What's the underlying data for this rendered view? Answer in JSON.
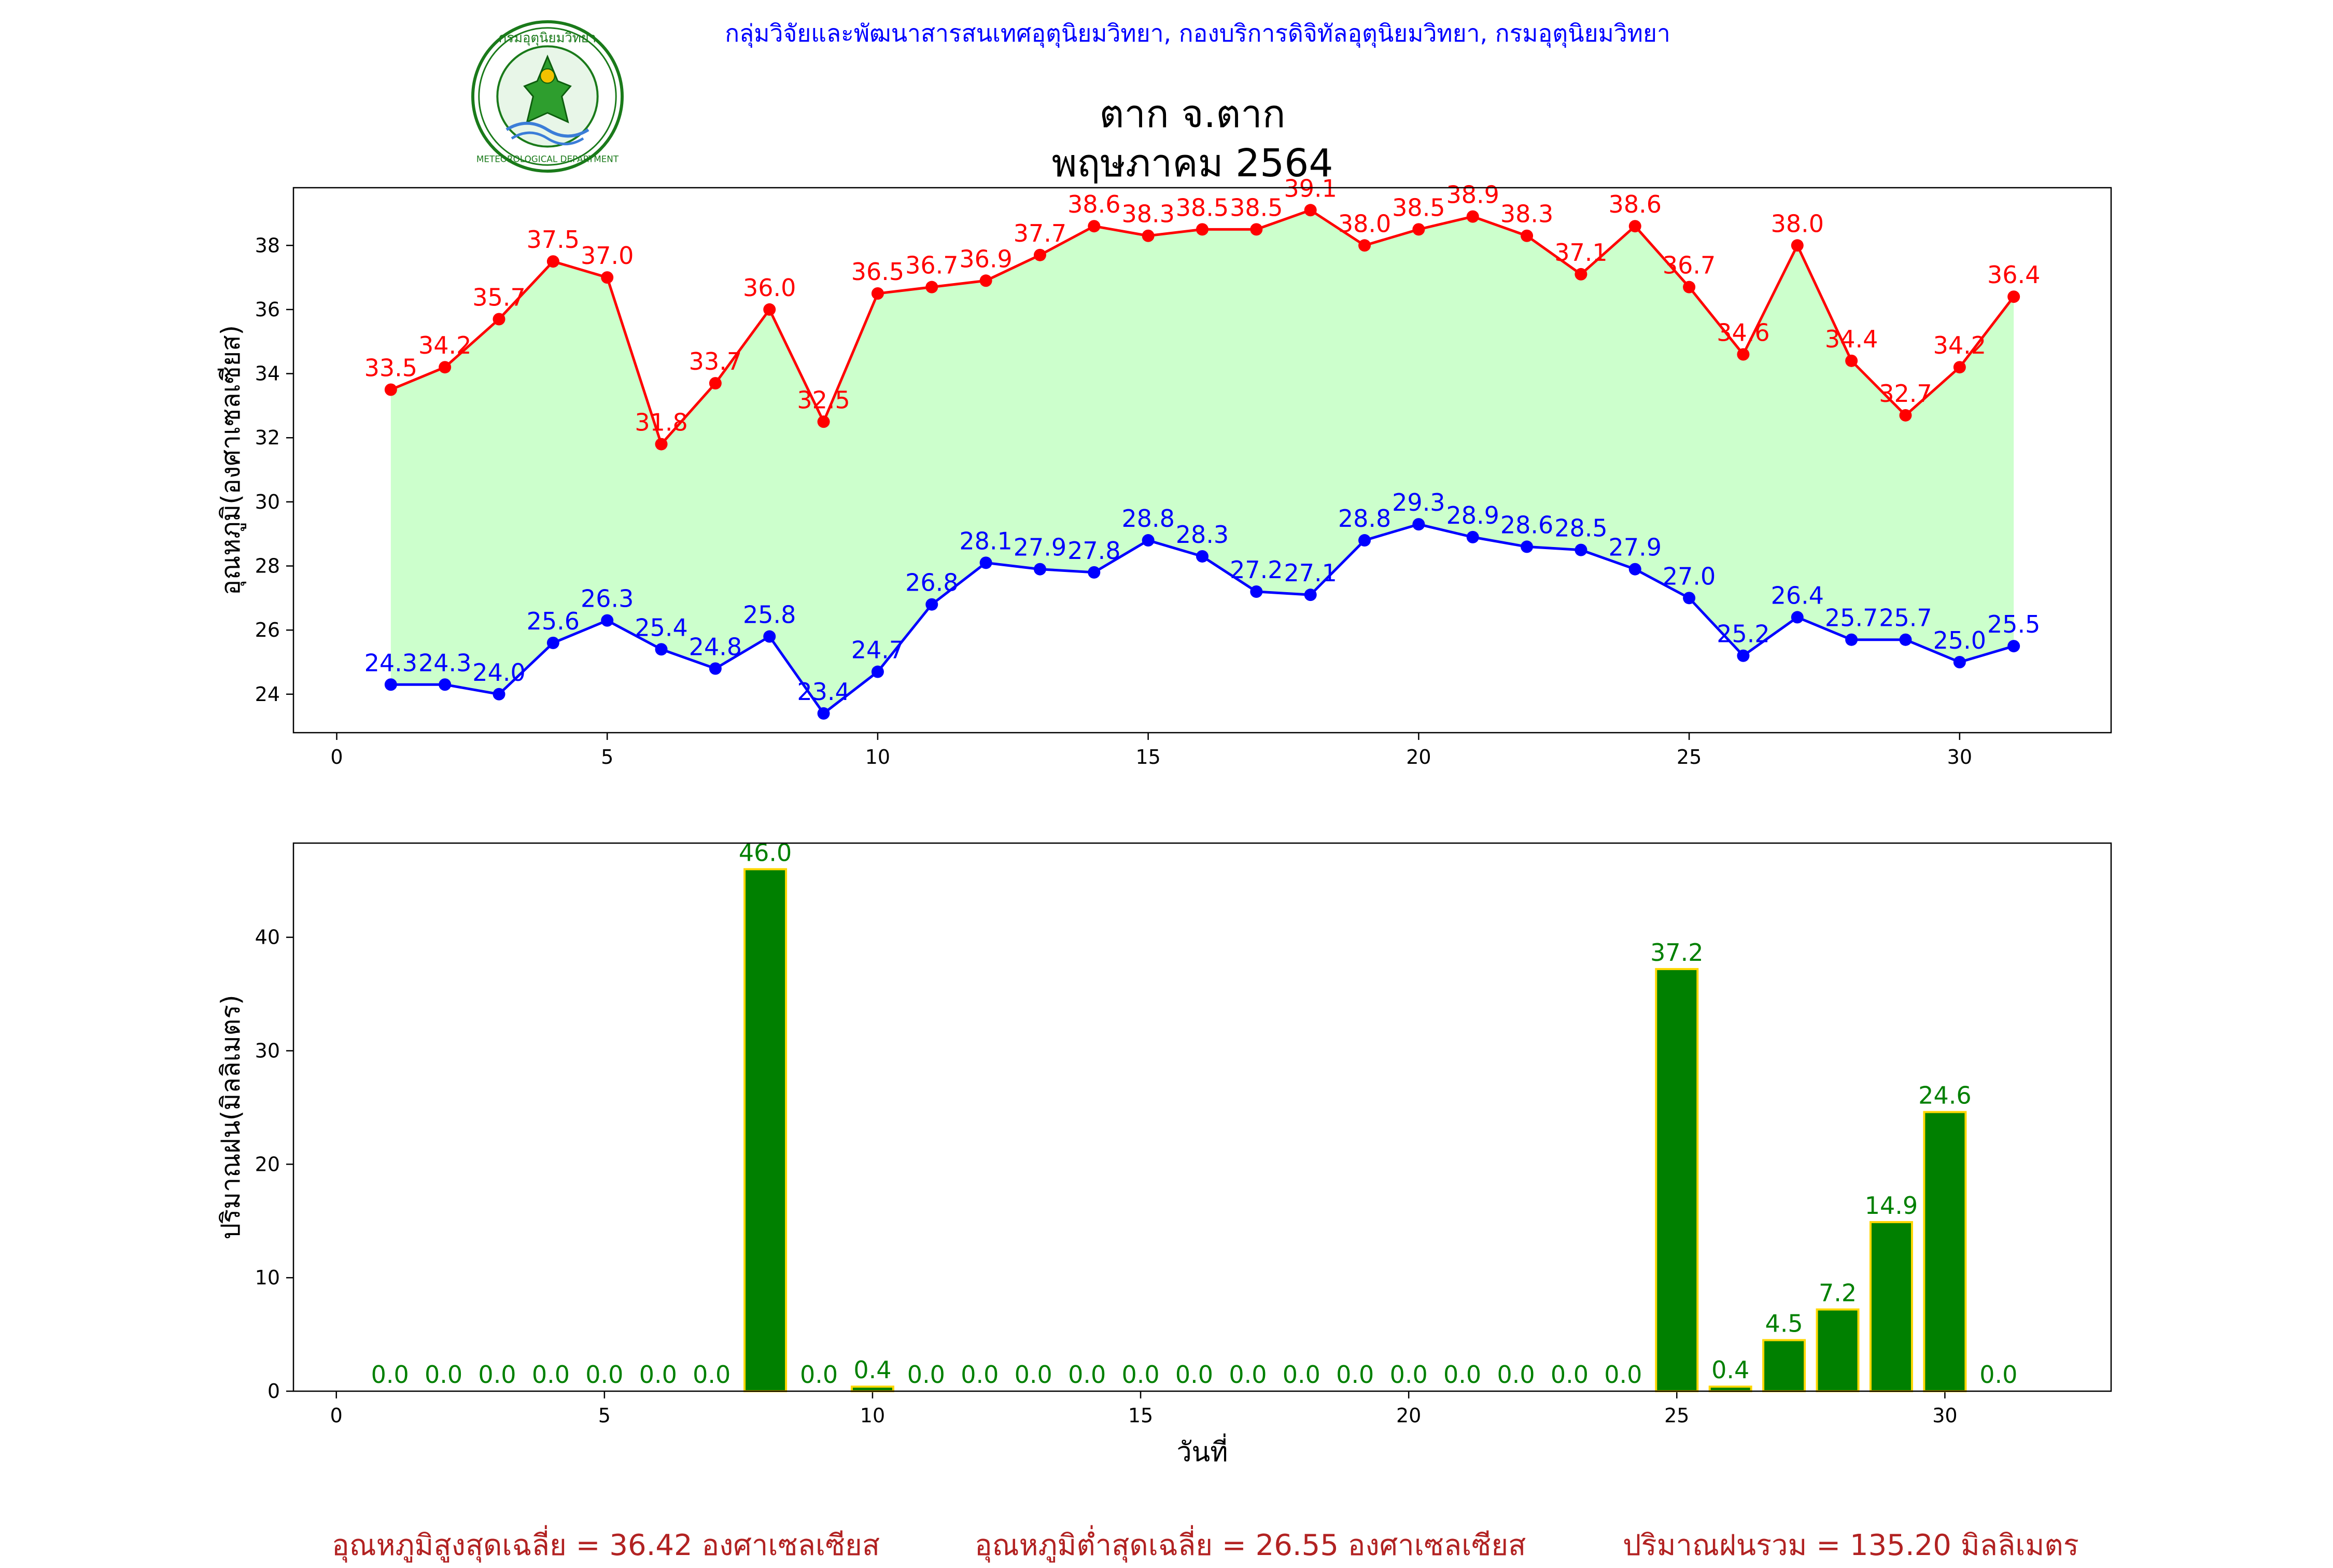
{
  "header": {
    "org_line": "กลุ่มวิจัยและพัฒนาสารสนเทศอุตุนิยมวิทยา, กองบริการดิจิทัลอุตุนิยมวิทยา, กรมอุตุนิยมวิทยา",
    "logo_text_top": "กรมอุตุนิยมวิทยา",
    "logo_text_bottom": "METEOROLOGICAL DEPARTMENT",
    "station": "ตาก จ.ตาก",
    "period": "พฤษภาคม 2564"
  },
  "summary": {
    "avg_max": "อุณหภูมิสูงสุดเฉลี่ย = 36.42 องศาเซลเซียส",
    "avg_min": "อุณหภูมิต่ำสุดเฉลี่ย = 26.55 องศาเซลเซียส",
    "total_rain": "ปริมาณฝนรวม = 135.20 มิลลิเมตร"
  },
  "colors": {
    "max_line": "#ff0000",
    "min_line": "#0000ff",
    "fill": "#ccffcc",
    "bar_fill": "#008000",
    "bar_edge": "#ffd700",
    "bar_label": "#008000"
  },
  "chart_data": [
    {
      "type": "line",
      "title": "",
      "xlabel": "",
      "ylabel": "อุณหภูมิ(องศาเซลเซียส)",
      "xlim": [
        -0.8,
        32.8
      ],
      "ylim": [
        22.8,
        39.8
      ],
      "xticks": [
        0,
        5,
        10,
        15,
        20,
        25,
        30
      ],
      "yticks": [
        24,
        26,
        28,
        30,
        32,
        34,
        36,
        38
      ],
      "x": [
        1,
        2,
        3,
        4,
        5,
        6,
        7,
        8,
        9,
        10,
        11,
        12,
        13,
        14,
        15,
        16,
        17,
        18,
        19,
        20,
        21,
        22,
        23,
        24,
        25,
        26,
        27,
        28,
        29,
        30,
        31
      ],
      "series": [
        {
          "values": [
            33.5,
            34.2,
            35.7,
            37.5,
            37.0,
            31.8,
            33.7,
            36.0,
            32.5,
            36.5,
            36.7,
            36.9,
            37.7,
            38.6,
            38.3,
            38.5,
            38.5,
            39.1,
            38.0,
            38.5,
            38.9,
            38.3,
            37.1,
            38.6,
            36.7,
            34.6,
            38.0,
            34.4,
            32.7,
            34.2,
            36.4
          ]
        },
        {
          "values": [
            24.3,
            24.3,
            24.0,
            25.6,
            26.3,
            25.4,
            24.8,
            25.8,
            23.4,
            24.7,
            26.8,
            28.1,
            27.9,
            27.8,
            28.8,
            28.3,
            27.2,
            27.1,
            28.8,
            29.3,
            28.9,
            28.6,
            28.5,
            27.9,
            27.0,
            25.2,
            26.4,
            25.7,
            25.7,
            25.0,
            25.5
          ]
        }
      ],
      "fill_between": true
    },
    {
      "type": "bar",
      "title": "",
      "xlabel": "วันที่",
      "ylabel": "ปริมาณฝน(มิลลิเมตร)",
      "xlim": [
        -0.8,
        33.1
      ],
      "ylim": [
        0,
        48.3
      ],
      "xticks": [
        0,
        5,
        10,
        15,
        20,
        25,
        30
      ],
      "yticks": [
        0,
        10,
        20,
        30,
        40
      ],
      "x": [
        1,
        2,
        3,
        4,
        5,
        6,
        7,
        8,
        9,
        10,
        11,
        12,
        13,
        14,
        15,
        16,
        17,
        18,
        19,
        20,
        21,
        22,
        23,
        24,
        25,
        26,
        27,
        28,
        29,
        30,
        31
      ],
      "values": [
        0.0,
        0.0,
        0.0,
        0.0,
        0.0,
        0.0,
        0.0,
        46.0,
        0.0,
        0.4,
        0.0,
        0.0,
        0.0,
        0.0,
        0.0,
        0.0,
        0.0,
        0.0,
        0.0,
        0.0,
        0.0,
        0.0,
        0.0,
        0.0,
        37.2,
        0.4,
        4.5,
        7.2,
        14.9,
        24.6,
        0.0
      ]
    }
  ]
}
